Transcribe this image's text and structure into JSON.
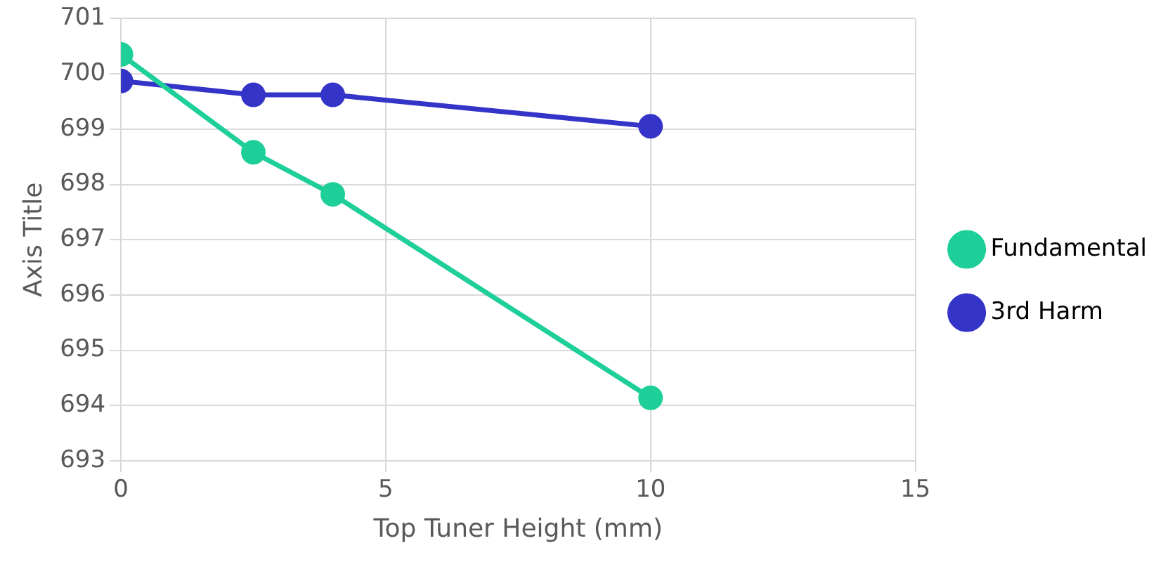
{
  "chart_data": {
    "type": "line",
    "xlabel": "Top Tuner Height (mm)",
    "ylabel": "Axis Title",
    "x": [
      0,
      2.5,
      4,
      10
    ],
    "series": [
      {
        "name": "Fundamental",
        "color": "#1fcf9a",
        "values": [
          700.35,
          698.58,
          697.82,
          694.14
        ]
      },
      {
        "name": "3rd Harm",
        "color": "#3434c8",
        "values": [
          699.87,
          699.62,
          699.62,
          699.05
        ]
      }
    ],
    "xlim": [
      0,
      15
    ],
    "xticks": [
      0,
      5,
      10,
      15
    ],
    "ylim": [
      693,
      701
    ],
    "yticks": [
      693,
      694,
      695,
      696,
      697,
      698,
      699,
      700,
      701
    ],
    "grid": true,
    "legend": "right",
    "marker": "circle",
    "line_style": "solid"
  }
}
